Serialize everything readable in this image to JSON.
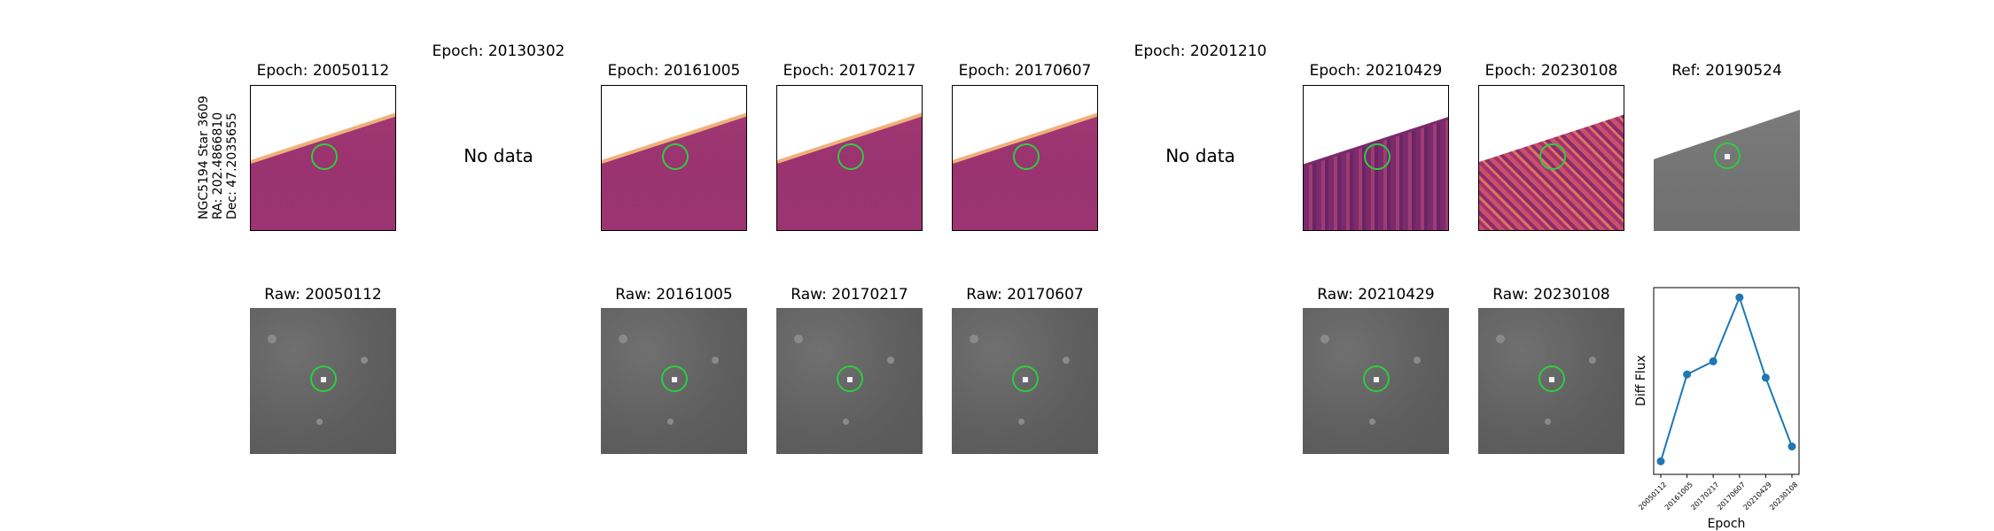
{
  "side_label": {
    "name": "NGC5194 Star 3609",
    "ra": "RA: 202.4866810",
    "dec": "Dec: 47.2035655"
  },
  "top_row": [
    {
      "title": "Epoch: 20050112",
      "state": "image",
      "style": "diff"
    },
    {
      "title": "Epoch: 20130302",
      "state": "nodata",
      "nodata_text": "No data"
    },
    {
      "title": "Epoch: 20161005",
      "state": "image",
      "style": "diff"
    },
    {
      "title": "Epoch: 20170217",
      "state": "image",
      "style": "diff"
    },
    {
      "title": "Epoch: 20170607",
      "state": "image",
      "style": "diff"
    },
    {
      "title": "Epoch: 20201210",
      "state": "nodata",
      "nodata_text": "No data"
    },
    {
      "title": "Epoch: 20210429",
      "state": "image",
      "style": "diff-noisy"
    },
    {
      "title": "Epoch: 20230108",
      "state": "image",
      "style": "diff-hot"
    },
    {
      "title": "Ref: 20190524",
      "state": "image",
      "style": "ref"
    }
  ],
  "bottom_row": [
    {
      "title": "Raw: 20050112"
    },
    {
      "title": "Raw: 20161005"
    },
    {
      "title": "Raw: 20170217"
    },
    {
      "title": "Raw: 20170607"
    },
    {
      "title": "Raw: 20210429"
    },
    {
      "title": "Raw: 20230108"
    }
  ],
  "colors": {
    "aperture": "#2ecc40",
    "line": "#1f77b4"
  },
  "chart_data": {
    "type": "line",
    "x": [
      "20050112",
      "20161005",
      "20170217",
      "20170607",
      "20210429",
      "20230108"
    ],
    "series": [
      {
        "values": [
          0.0,
          0.53,
          0.61,
          1.0,
          0.51,
          0.09
        ]
      }
    ],
    "xlabel": "Epoch",
    "ylabel": "Diff Flux",
    "ylim": [
      -0.08,
      1.06
    ],
    "yticks": "hidden",
    "grid": false
  }
}
